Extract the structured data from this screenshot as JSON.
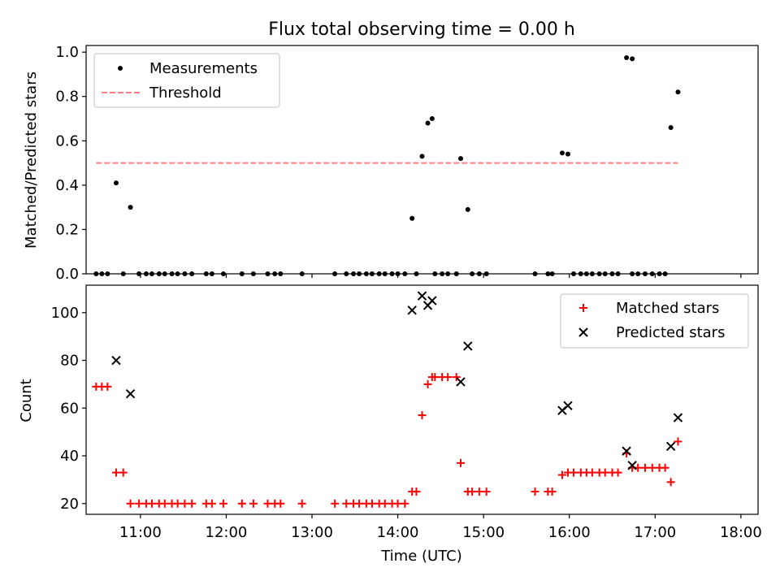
{
  "title": "Flux total observing time = 0.00 h",
  "chart_data": [
    {
      "type": "scatter",
      "ylabel": "Matched/Predicted stars",
      "xlim": [
        "10:22",
        "18:12"
      ],
      "ylim": [
        0,
        1.03
      ],
      "xticks": [
        "11:00",
        "12:00",
        "13:00",
        "14:00",
        "15:00",
        "16:00",
        "17:00",
        "18:00"
      ],
      "yticks": [
        "0.0",
        "0.2",
        "0.4",
        "0.6",
        "0.8",
        "1.0"
      ],
      "grid": false,
      "legend": "top-left",
      "series": [
        {
          "name": "Measurements",
          "marker": "dot",
          "color": "#000000",
          "points": [
            [
              "10:29",
              0
            ],
            [
              "10:33",
              0
            ],
            [
              "10:37",
              0
            ],
            [
              "10:43",
              0.41
            ],
            [
              "10:48",
              0
            ],
            [
              "10:53",
              0.3
            ],
            [
              "10:59",
              0
            ],
            [
              "11:04",
              0
            ],
            [
              "11:08",
              0
            ],
            [
              "11:13",
              0
            ],
            [
              "11:17",
              0
            ],
            [
              "11:22",
              0
            ],
            [
              "11:26",
              0
            ],
            [
              "11:31",
              0
            ],
            [
              "11:36",
              0
            ],
            [
              "11:46",
              0
            ],
            [
              "11:50",
              0
            ],
            [
              "11:58",
              0
            ],
            [
              "12:11",
              0
            ],
            [
              "12:19",
              0
            ],
            [
              "12:29",
              0
            ],
            [
              "12:34",
              0
            ],
            [
              "12:38",
              0
            ],
            [
              "12:53",
              0
            ],
            [
              "13:16",
              0
            ],
            [
              "13:24",
              0
            ],
            [
              "13:29",
              0
            ],
            [
              "13:33",
              0
            ],
            [
              "13:38",
              0
            ],
            [
              "13:42",
              0
            ],
            [
              "13:47",
              0
            ],
            [
              "13:51",
              0
            ],
            [
              "13:56",
              0
            ],
            [
              "14:00",
              0
            ],
            [
              "14:05",
              0
            ],
            [
              "14:10",
              0.25
            ],
            [
              "14:13",
              0
            ],
            [
              "14:17",
              0.53
            ],
            [
              "14:21",
              0.68
            ],
            [
              "14:24",
              0.7
            ],
            [
              "14:26",
              0
            ],
            [
              "14:31",
              0
            ],
            [
              "14:35",
              0
            ],
            [
              "14:41",
              0
            ],
            [
              "14:44",
              0.52
            ],
            [
              "14:49",
              0.29
            ],
            [
              "14:52",
              0
            ],
            [
              "14:57",
              0
            ],
            [
              "15:02",
              0
            ],
            [
              "15:36",
              0
            ],
            [
              "15:45",
              0
            ],
            [
              "15:48",
              0
            ],
            [
              "15:55",
              0.545
            ],
            [
              "15:59",
              0.54
            ],
            [
              "16:03",
              0
            ],
            [
              "16:08",
              0
            ],
            [
              "16:12",
              0
            ],
            [
              "16:16",
              0
            ],
            [
              "16:21",
              0
            ],
            [
              "16:25",
              0
            ],
            [
              "16:30",
              0
            ],
            [
              "16:34",
              0
            ],
            [
              "16:40",
              0.975
            ],
            [
              "16:44",
              0.97
            ],
            [
              "16:44",
              0
            ],
            [
              "16:48",
              0
            ],
            [
              "16:53",
              0
            ],
            [
              "16:58",
              0
            ],
            [
              "17:03",
              0
            ],
            [
              "17:07",
              0
            ],
            [
              "17:11",
              0.66
            ],
            [
              "17:16",
              0.82
            ]
          ]
        },
        {
          "name": "Threshold",
          "style": "dashed",
          "color": "#ff8080",
          "x": [
            "10:29",
            "17:16"
          ],
          "y": [
            0.5,
            0.5
          ]
        }
      ]
    },
    {
      "type": "scatter",
      "ylabel": "Count",
      "xlabel": "Time (UTC)",
      "xlim": [
        "10:22",
        "18:12"
      ],
      "ylim": [
        15.5,
        111.5
      ],
      "xticks": [
        "11:00",
        "12:00",
        "13:00",
        "14:00",
        "15:00",
        "16:00",
        "17:00",
        "18:00"
      ],
      "yticks": [
        "20",
        "40",
        "60",
        "80",
        "100"
      ],
      "grid": false,
      "legend": "top-right",
      "series": [
        {
          "name": "Matched stars",
          "marker": "plus",
          "color": "#ff0000",
          "points": [
            [
              "10:29",
              69
            ],
            [
              "10:33",
              69
            ],
            [
              "10:37",
              69
            ],
            [
              "10:43",
              33
            ],
            [
              "10:48",
              33
            ],
            [
              "10:53",
              20
            ],
            [
              "10:59",
              20
            ],
            [
              "11:04",
              20
            ],
            [
              "11:08",
              20
            ],
            [
              "11:13",
              20
            ],
            [
              "11:17",
              20
            ],
            [
              "11:22",
              20
            ],
            [
              "11:26",
              20
            ],
            [
              "11:31",
              20
            ],
            [
              "11:36",
              20
            ],
            [
              "11:46",
              20
            ],
            [
              "11:50",
              20
            ],
            [
              "11:58",
              20
            ],
            [
              "12:11",
              20
            ],
            [
              "12:19",
              20
            ],
            [
              "12:29",
              20
            ],
            [
              "12:34",
              20
            ],
            [
              "12:38",
              20
            ],
            [
              "12:53",
              20
            ],
            [
              "13:16",
              20
            ],
            [
              "13:24",
              20
            ],
            [
              "13:29",
              20
            ],
            [
              "13:33",
              20
            ],
            [
              "13:38",
              20
            ],
            [
              "13:42",
              20
            ],
            [
              "13:47",
              20
            ],
            [
              "13:51",
              20
            ],
            [
              "13:56",
              20
            ],
            [
              "14:00",
              20
            ],
            [
              "14:05",
              20
            ],
            [
              "14:10",
              25
            ],
            [
              "14:13",
              25
            ],
            [
              "14:17",
              57
            ],
            [
              "14:21",
              70
            ],
            [
              "14:24",
              73
            ],
            [
              "14:26",
              73
            ],
            [
              "14:31",
              73
            ],
            [
              "14:35",
              73
            ],
            [
              "14:41",
              73
            ],
            [
              "14:44",
              37
            ],
            [
              "14:49",
              25
            ],
            [
              "14:52",
              25
            ],
            [
              "14:57",
              25
            ],
            [
              "15:02",
              25
            ],
            [
              "15:36",
              25
            ],
            [
              "15:45",
              25
            ],
            [
              "15:48",
              25
            ],
            [
              "15:55",
              32
            ],
            [
              "15:59",
              33
            ],
            [
              "16:03",
              33
            ],
            [
              "16:08",
              33
            ],
            [
              "16:12",
              33
            ],
            [
              "16:16",
              33
            ],
            [
              "16:21",
              33
            ],
            [
              "16:25",
              33
            ],
            [
              "16:30",
              33
            ],
            [
              "16:34",
              33
            ],
            [
              "16:40",
              41
            ],
            [
              "16:44",
              35
            ],
            [
              "16:48",
              35
            ],
            [
              "16:53",
              35
            ],
            [
              "16:58",
              35
            ],
            [
              "17:03",
              35
            ],
            [
              "17:07",
              35
            ],
            [
              "17:11",
              29
            ],
            [
              "17:16",
              46
            ]
          ]
        },
        {
          "name": "Predicted stars",
          "marker": "x",
          "color": "#000000",
          "points": [
            [
              "10:43",
              80
            ],
            [
              "10:53",
              66
            ],
            [
              "14:10",
              101
            ],
            [
              "14:17",
              107
            ],
            [
              "14:21",
              103
            ],
            [
              "14:24",
              105
            ],
            [
              "14:44",
              71
            ],
            [
              "14:49",
              86
            ],
            [
              "15:55",
              59
            ],
            [
              "15:59",
              61
            ],
            [
              "16:40",
              42
            ],
            [
              "16:44",
              36
            ],
            [
              "17:11",
              44
            ],
            [
              "17:16",
              56
            ]
          ]
        }
      ]
    }
  ]
}
